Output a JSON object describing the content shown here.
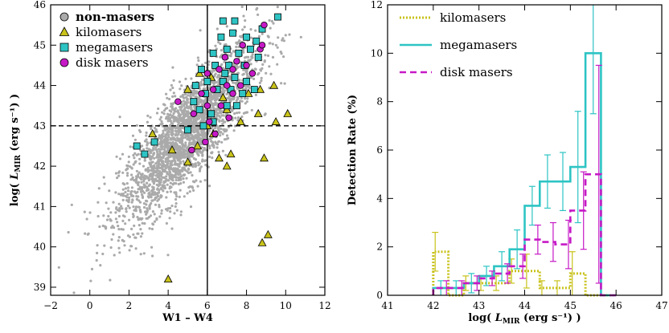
{
  "chart_data": [
    {
      "type": "scatter",
      "xlabel": "W1 – W4",
      "ylabel": "log( L_MIR (erg s⁻¹) )",
      "xlim": [
        -2,
        12
      ],
      "ylim": [
        38.8,
        46
      ],
      "xticks": [
        "−2",
        "0",
        "2",
        "4",
        "6",
        "8",
        "10",
        "12"
      ],
      "yticks": [
        "39",
        "40",
        "41",
        "42",
        "43",
        "44",
        "45",
        "46"
      ],
      "grid": false,
      "legend_position": "top-left",
      "reference_lines": {
        "horizontal_y": 43.0,
        "vertical_x": 6.0
      },
      "colors": {
        "non-masers": "#aaaaaa",
        "kilomasers": "#c8c21a",
        "megamasers": "#2ec4c4",
        "disk masers": "#c619c6"
      },
      "series": [
        {
          "name": "non-masers",
          "marker": "circle",
          "values": []
        },
        {
          "name": "kilomasers",
          "marker": "triangle",
          "values": [
            [
              4.0,
              39.2
            ],
            [
              8.8,
              40.1
            ],
            [
              9.1,
              40.3
            ],
            [
              4.2,
              42.4
            ],
            [
              5.0,
              42.1
            ],
            [
              6.6,
              42.2
            ],
            [
              7.0,
              42.0
            ],
            [
              8.9,
              42.2
            ],
            [
              7.2,
              42.3
            ],
            [
              5.5,
              42.5
            ],
            [
              3.2,
              42.8
            ],
            [
              6.3,
              42.8
            ],
            [
              6.0,
              43.0
            ],
            [
              7.7,
              43.1
            ],
            [
              9.5,
              43.1
            ],
            [
              10.1,
              43.3
            ],
            [
              8.6,
              43.3
            ],
            [
              7.0,
              43.4
            ],
            [
              6.8,
              43.7
            ],
            [
              8.1,
              43.8
            ],
            [
              8.7,
              43.9
            ],
            [
              5.0,
              43.9
            ],
            [
              9.4,
              44.0
            ],
            [
              6.2,
              44.2
            ],
            [
              5.6,
              44.3
            ]
          ]
        },
        {
          "name": "megamasers",
          "marker": "square",
          "values": [
            [
              2.4,
              42.5
            ],
            [
              2.8,
              42.3
            ],
            [
              3.3,
              42.6
            ],
            [
              5.0,
              42.9
            ],
            [
              5.8,
              43.0
            ],
            [
              6.3,
              43.1
            ],
            [
              7.0,
              43.5
            ],
            [
              7.5,
              43.5
            ],
            [
              5.6,
              43.4
            ],
            [
              6.2,
              43.3
            ],
            [
              5.9,
              43.8
            ],
            [
              6.5,
              43.9
            ],
            [
              7.2,
              43.9
            ],
            [
              7.8,
              43.8
            ],
            [
              8.4,
              43.9
            ],
            [
              5.4,
              44.0
            ],
            [
              6.0,
              44.1
            ],
            [
              6.8,
              44.1
            ],
            [
              7.4,
              44.2
            ],
            [
              8.0,
              44.1
            ],
            [
              5.7,
              44.4
            ],
            [
              6.4,
              44.5
            ],
            [
              7.1,
              44.5
            ],
            [
              7.9,
              44.5
            ],
            [
              6.3,
              44.8
            ],
            [
              7.0,
              44.9
            ],
            [
              7.6,
              44.8
            ],
            [
              8.2,
              44.9
            ],
            [
              6.7,
              45.2
            ],
            [
              7.3,
              45.3
            ],
            [
              8.0,
              45.2
            ],
            [
              8.8,
              45.4
            ],
            [
              6.8,
              45.6
            ],
            [
              7.4,
              45.6
            ],
            [
              8.5,
              45.1
            ],
            [
              9.6,
              45.7
            ],
            [
              8.6,
              44.7
            ],
            [
              5.3,
              43.6
            ],
            [
              6.9,
              44.3
            ]
          ]
        },
        {
          "name": "disk masers",
          "marker": "circle",
          "values": [
            [
              5.2,
              42.4
            ],
            [
              5.9,
              42.6
            ],
            [
              6.4,
              42.8
            ],
            [
              5.3,
              43.3
            ],
            [
              6.0,
              43.5
            ],
            [
              6.7,
              43.5
            ],
            [
              7.3,
              43.8
            ],
            [
              5.7,
              43.8
            ],
            [
              6.3,
              43.9
            ],
            [
              7.0,
              44.0
            ],
            [
              7.7,
              44.0
            ],
            [
              8.3,
              44.3
            ],
            [
              6.0,
              44.3
            ],
            [
              6.6,
              44.4
            ],
            [
              7.3,
              44.4
            ],
            [
              8.0,
              44.5
            ],
            [
              6.9,
              44.7
            ],
            [
              7.5,
              44.6
            ],
            [
              8.7,
              44.9
            ],
            [
              7.8,
              45.0
            ],
            [
              8.9,
              45.5
            ],
            [
              6.1,
              43.1
            ],
            [
              7.1,
              43.2
            ],
            [
              4.5,
              43.6
            ],
            [
              8.8,
              45.0
            ]
          ]
        }
      ]
    },
    {
      "type": "line",
      "step": true,
      "xlabel": "log( L_MIR (erg s⁻¹) )",
      "ylabel": "Detection Rate  (%)",
      "xlim": [
        41,
        47
      ],
      "ylim": [
        0,
        12
      ],
      "xticks": [
        "41",
        "42",
        "43",
        "44",
        "45",
        "46",
        "47"
      ],
      "yticks": [
        "0",
        "2",
        "4",
        "6",
        "8",
        "10",
        "12"
      ],
      "grid": false,
      "legend_position": "top-left",
      "bin_edges": [
        42.0,
        42.33,
        42.67,
        43.0,
        43.33,
        43.67,
        44.0,
        44.33,
        44.67,
        45.0,
        45.33,
        45.67,
        46.0
      ],
      "series": [
        {
          "name": "kilomasers",
          "style": "dotted",
          "color": "#c8c21a",
          "values": [
            1.8,
            0.0,
            0.5,
            0.5,
            0.5,
            1.0,
            1.0,
            0.3,
            0.3,
            0.9,
            0.0,
            0.0
          ],
          "errors": [
            0.8,
            0.0,
            0.3,
            0.3,
            0.3,
            0.5,
            0.7,
            0.3,
            0.3,
            0.9,
            0.0,
            0.0
          ]
        },
        {
          "name": "megamasers",
          "style": "solid",
          "color": "#2ec4c4",
          "values": [
            0.3,
            0.3,
            0.5,
            0.8,
            1.2,
            1.9,
            3.7,
            4.7,
            4.7,
            5.3,
            10.0,
            0.0
          ],
          "errors": [
            0.3,
            0.3,
            0.4,
            0.4,
            0.6,
            0.8,
            0.8,
            1.1,
            1.2,
            2.3,
            2.5,
            0.0
          ]
        },
        {
          "name": "disk masers",
          "style": "dashed",
          "color": "#c619c6",
          "values": [
            0.3,
            0.3,
            0.5,
            0.7,
            0.9,
            1.2,
            2.3,
            2.2,
            2.1,
            3.5,
            5.0,
            0.0
          ],
          "errors": [
            0.3,
            0.3,
            0.3,
            0.3,
            0.4,
            0.5,
            0.6,
            0.8,
            1.0,
            1.6,
            4.5,
            0.0
          ]
        }
      ]
    }
  ]
}
